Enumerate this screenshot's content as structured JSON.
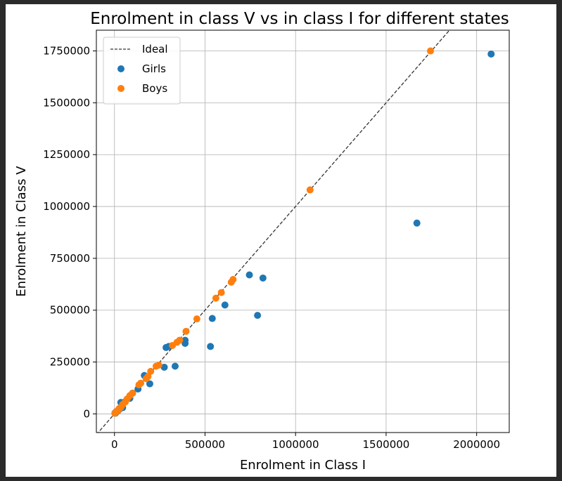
{
  "chart_data": {
    "type": "scatter",
    "title": "Enrolment in class V vs in class I for different states",
    "xlabel": "Enrolment in Class I",
    "ylabel": "Enrolment in Class V",
    "xlim": [
      -100000,
      2180000
    ],
    "ylim": [
      -90000,
      1850000
    ],
    "xticks": [
      0,
      500000,
      1000000,
      1500000,
      2000000
    ],
    "yticks": [
      0,
      250000,
      500000,
      750000,
      1000000,
      1250000,
      1500000,
      1750000
    ],
    "grid": true,
    "legend_position": "top-left",
    "ideal_line": {
      "name": "Ideal",
      "color": "#333333",
      "style": "dashed"
    },
    "series": [
      {
        "name": "Girls",
        "color": "#1f77b4",
        "points": [
          [
            2080000,
            1735000
          ],
          [
            1670000,
            920000
          ],
          [
            820000,
            655000
          ],
          [
            790000,
            475000
          ],
          [
            745000,
            670000
          ],
          [
            610000,
            525000
          ],
          [
            540000,
            460000
          ],
          [
            530000,
            325000
          ],
          [
            390000,
            355000
          ],
          [
            390000,
            340000
          ],
          [
            335000,
            230000
          ],
          [
            300000,
            325000
          ],
          [
            285000,
            320000
          ],
          [
            275000,
            225000
          ],
          [
            195000,
            145000
          ],
          [
            165000,
            185000
          ],
          [
            130000,
            120000
          ],
          [
            100000,
            100000
          ],
          [
            85000,
            75000
          ],
          [
            60000,
            60000
          ],
          [
            45000,
            30000
          ],
          [
            35000,
            55000
          ],
          [
            30000,
            25000
          ],
          [
            20000,
            15000
          ],
          [
            10000,
            8000
          ],
          [
            5000,
            3000
          ],
          [
            3000,
            5000
          ]
        ]
      },
      {
        "name": "Boys",
        "color": "#ff7f0e",
        "points": [
          [
            1745000,
            1750000
          ],
          [
            1080000,
            1080000
          ],
          [
            655000,
            648000
          ],
          [
            645000,
            635000
          ],
          [
            590000,
            585000
          ],
          [
            560000,
            558000
          ],
          [
            455000,
            458000
          ],
          [
            395000,
            398000
          ],
          [
            360000,
            355000
          ],
          [
            345000,
            345000
          ],
          [
            320000,
            330000
          ],
          [
            245000,
            235000
          ],
          [
            230000,
            230000
          ],
          [
            200000,
            205000
          ],
          [
            185000,
            180000
          ],
          [
            175000,
            170000
          ],
          [
            145000,
            148000
          ],
          [
            135000,
            140000
          ],
          [
            100000,
            100000
          ],
          [
            85000,
            88000
          ],
          [
            70000,
            72000
          ],
          [
            60000,
            58000
          ],
          [
            45000,
            45000
          ],
          [
            35000,
            32000
          ],
          [
            25000,
            25000
          ],
          [
            18000,
            15000
          ],
          [
            10000,
            12000
          ],
          [
            5000,
            5000
          ],
          [
            2000,
            3000
          ]
        ]
      }
    ]
  }
}
